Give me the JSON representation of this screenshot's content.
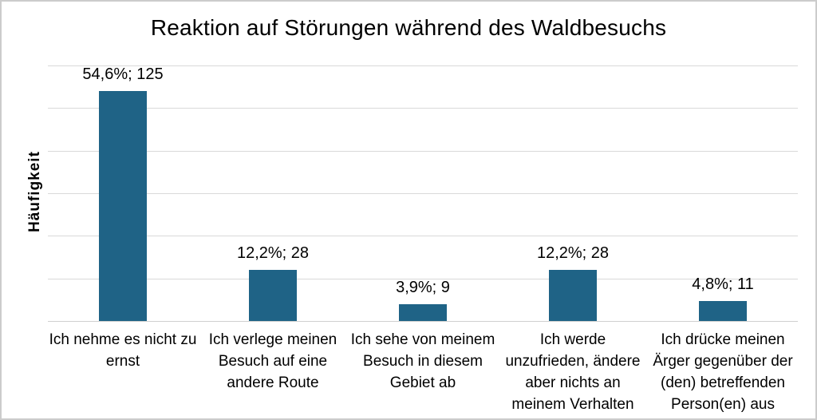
{
  "chart_data": {
    "type": "bar",
    "title": "Reaktion auf Störungen während des Waldbesuchs",
    "ylabel": "Häufigkeit",
    "xlabel": "",
    "categories": [
      "Ich nehme es nicht zu\nernst",
      "Ich verlege meinen\nBesuch auf eine\nandere Route",
      "Ich sehe von meinem\nBesuch in diesem\nGebiet ab",
      "Ich werde\nunzufrieden, ändere\naber nichts an\nmeinem Verhalten",
      "Ich drücke meinen\nÄrger gegenüber der\n(den) betreffenden\nPerson(en) aus"
    ],
    "values": [
      125,
      28,
      9,
      28,
      11
    ],
    "percentages": [
      54.6,
      12.2,
      3.9,
      12.2,
      4.8
    ],
    "data_labels": [
      "54,6%; 125",
      "12,2%; 28",
      "3,9%; 9",
      "12,2%; 28",
      "4,8%; 11"
    ],
    "ylim": [
      0,
      139
    ],
    "gridlines": 7,
    "grid": true,
    "legend": false,
    "colors": {
      "bar": "#1F6386",
      "gridline": "#D9D9D9",
      "axis_line": "#D0D0D0",
      "text": "#000000",
      "frame": "#CCCCCC"
    }
  }
}
